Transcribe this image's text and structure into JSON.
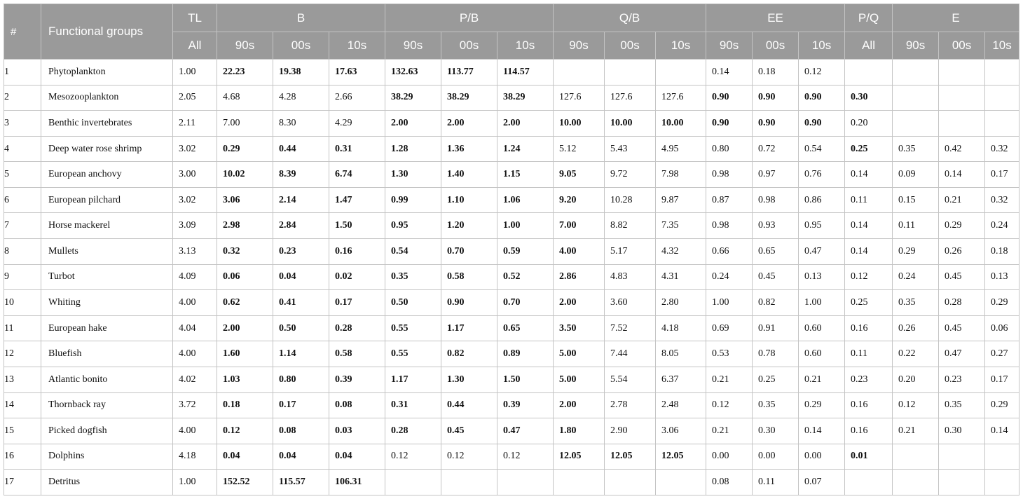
{
  "table": {
    "header": {
      "hash": "#",
      "functional_groups": "Functional groups",
      "groups": [
        "TL",
        "B",
        "P/B",
        "Q/B",
        "EE",
        "P/Q",
        "E"
      ],
      "sub": [
        "All",
        "90s",
        "00s",
        "10s",
        "90s",
        "00s",
        "10s",
        "90s",
        "00s",
        "10s",
        "90s",
        "00s",
        "10s",
        "All",
        "90s",
        "00s",
        "10s"
      ]
    },
    "columns": [
      "#",
      "Functional groups",
      "TL All",
      "B 90s",
      "B 00s",
      "B 10s",
      "P/B 90s",
      "P/B 00s",
      "P/B 10s",
      "Q/B 90s",
      "Q/B 00s",
      "Q/B 10s",
      "EE 90s",
      "EE 00s",
      "EE 10s",
      "P/Q All",
      "E 90s",
      "E 00s",
      "E 10s"
    ],
    "rows": [
      [
        "1",
        "Phytoplankton",
        "1.00",
        "22.23",
        "19.38",
        "17.63",
        "132.63",
        "113.77",
        "114.57",
        "",
        "",
        "",
        "0.14",
        "0.18",
        "0.12",
        "",
        "",
        "",
        ""
      ],
      [
        "2",
        "Mesozooplankton",
        "2.05",
        "4.68",
        "4.28",
        "2.66",
        "38.29",
        "38.29",
        "38.29",
        "127.6",
        "127.6",
        "127.6",
        "0.90",
        "0.90",
        "0.90",
        "0.30",
        "",
        "",
        ""
      ],
      [
        "3",
        "Benthic invertebrates",
        "2.11",
        "7.00",
        "8.30",
        "4.29",
        "2.00",
        "2.00",
        "2.00",
        "10.00",
        "10.00",
        "10.00",
        "0.90",
        "0.90",
        "0.90",
        "0.20",
        "",
        "",
        ""
      ],
      [
        "4",
        "Deep water rose shrimp",
        "3.02",
        "0.29",
        "0.44",
        "0.31",
        "1.28",
        "1.36",
        "1.24",
        "5.12",
        "5.43",
        "4.95",
        "0.80",
        "0.72",
        "0.54",
        "0.25",
        "0.35",
        "0.42",
        "0.32"
      ],
      [
        "5",
        "European anchovy",
        "3.00",
        "10.02",
        "8.39",
        "6.74",
        "1.30",
        "1.40",
        "1.15",
        "9.05",
        "9.72",
        "7.98",
        "0.98",
        "0.97",
        "0.76",
        "0.14",
        "0.09",
        "0.14",
        "0.17"
      ],
      [
        "6",
        "European pilchard",
        "3.02",
        "3.06",
        "2.14",
        "1.47",
        "0.99",
        "1.10",
        "1.06",
        "9.20",
        "10.28",
        "9.87",
        "0.87",
        "0.98",
        "0.86",
        "0.11",
        "0.15",
        "0.21",
        "0.32"
      ],
      [
        "7",
        "Horse mackerel",
        "3.09",
        "2.98",
        "2.84",
        "1.50",
        "0.95",
        "1.20",
        "1.00",
        "7.00",
        "8.82",
        "7.35",
        "0.98",
        "0.93",
        "0.95",
        "0.14",
        "0.11",
        "0.29",
        "0.24"
      ],
      [
        "8",
        "Mullets",
        "3.13",
        "0.32",
        "0.23",
        "0.16",
        "0.54",
        "0.70",
        "0.59",
        "4.00",
        "5.17",
        "4.32",
        "0.66",
        "0.65",
        "0.47",
        "0.14",
        "0.29",
        "0.26",
        "0.18"
      ],
      [
        "9",
        "Turbot",
        "4.09",
        "0.06",
        "0.04",
        "0.02",
        "0.35",
        "0.58",
        "0.52",
        "2.86",
        "4.83",
        "4.31",
        "0.24",
        "0.45",
        "0.13",
        "0.12",
        "0.24",
        "0.45",
        "0.13"
      ],
      [
        "10",
        "Whiting",
        "4.00",
        "0.62",
        "0.41",
        "0.17",
        "0.50",
        "0.90",
        "0.70",
        "2.00",
        "3.60",
        "2.80",
        "1.00",
        "0.82",
        "1.00",
        "0.25",
        "0.35",
        "0.28",
        "0.29"
      ],
      [
        "11",
        "European hake",
        "4.04",
        "2.00",
        "0.50",
        "0.28",
        "0.55",
        "1.17",
        "0.65",
        "3.50",
        "7.52",
        "4.18",
        "0.69",
        "0.91",
        "0.60",
        "0.16",
        "0.26",
        "0.45",
        "0.06"
      ],
      [
        "12",
        "Bluefish",
        "4.00",
        "1.60",
        "1.14",
        "0.58",
        "0.55",
        "0.82",
        "0.89",
        "5.00",
        "7.44",
        "8.05",
        "0.53",
        "0.78",
        "0.60",
        "0.11",
        "0.22",
        "0.47",
        "0.27"
      ],
      [
        "13",
        "Atlantic bonito",
        "4.02",
        "1.03",
        "0.80",
        "0.39",
        "1.17",
        "1.30",
        "1.50",
        "5.00",
        "5.54",
        "6.37",
        "0.21",
        "0.25",
        "0.21",
        "0.23",
        "0.20",
        "0.23",
        "0.17"
      ],
      [
        "14",
        "Thornback ray",
        "3.72",
        "0.18",
        "0.17",
        "0.08",
        "0.31",
        "0.44",
        "0.39",
        "2.00",
        "2.78",
        "2.48",
        "0.12",
        "0.35",
        "0.29",
        "0.16",
        "0.12",
        "0.35",
        "0.29"
      ],
      [
        "15",
        "Picked dogfish",
        "4.00",
        "0.12",
        "0.08",
        "0.03",
        "0.28",
        "0.45",
        "0.47",
        "1.80",
        "2.90",
        "3.06",
        "0.21",
        "0.30",
        "0.14",
        "0.16",
        "0.21",
        "0.30",
        "0.14"
      ],
      [
        "16",
        "Dolphins",
        "4.18",
        "0.04",
        "0.04",
        "0.04",
        "0.12",
        "0.12",
        "0.12",
        "12.05",
        "12.05",
        "12.05",
        "0.00",
        "0.00",
        "0.00",
        "0.01",
        "",
        "",
        ""
      ],
      [
        "17",
        "Detritus",
        "1.00",
        "152.52",
        "115.57",
        "106.31",
        "",
        "",
        "",
        "",
        "",
        "",
        "0.08",
        "0.11",
        "0.07",
        "",
        "",
        "",
        ""
      ]
    ],
    "bold": [
      [
        3,
        4,
        5,
        6,
        7,
        8
      ],
      [
        6,
        7,
        8,
        12,
        13,
        14,
        15
      ],
      [
        6,
        7,
        8,
        9,
        10,
        11,
        12,
        13,
        14
      ],
      [
        3,
        4,
        5,
        6,
        7,
        8,
        15
      ],
      [
        3,
        4,
        5,
        6,
        7,
        8,
        9
      ],
      [
        3,
        4,
        5,
        6,
        7,
        8,
        9
      ],
      [
        3,
        4,
        5,
        6,
        7,
        8,
        9
      ],
      [
        3,
        4,
        5,
        6,
        7,
        8,
        9
      ],
      [
        3,
        4,
        5,
        6,
        7,
        8,
        9
      ],
      [
        3,
        4,
        5,
        6,
        7,
        8,
        9
      ],
      [
        3,
        4,
        5,
        6,
        7,
        8,
        9
      ],
      [
        3,
        4,
        5,
        6,
        7,
        8,
        9
      ],
      [
        3,
        4,
        5,
        6,
        7,
        8,
        9
      ],
      [
        3,
        4,
        5,
        6,
        7,
        8,
        9
      ],
      [
        3,
        4,
        5,
        6,
        7,
        8,
        9
      ],
      [
        3,
        4,
        5,
        9,
        10,
        11,
        15
      ],
      [
        3,
        4,
        5
      ]
    ],
    "colors": {
      "header_bg": "#9a9a9a",
      "header_text": "#ffffff",
      "grid": "#c4c4c4"
    }
  }
}
